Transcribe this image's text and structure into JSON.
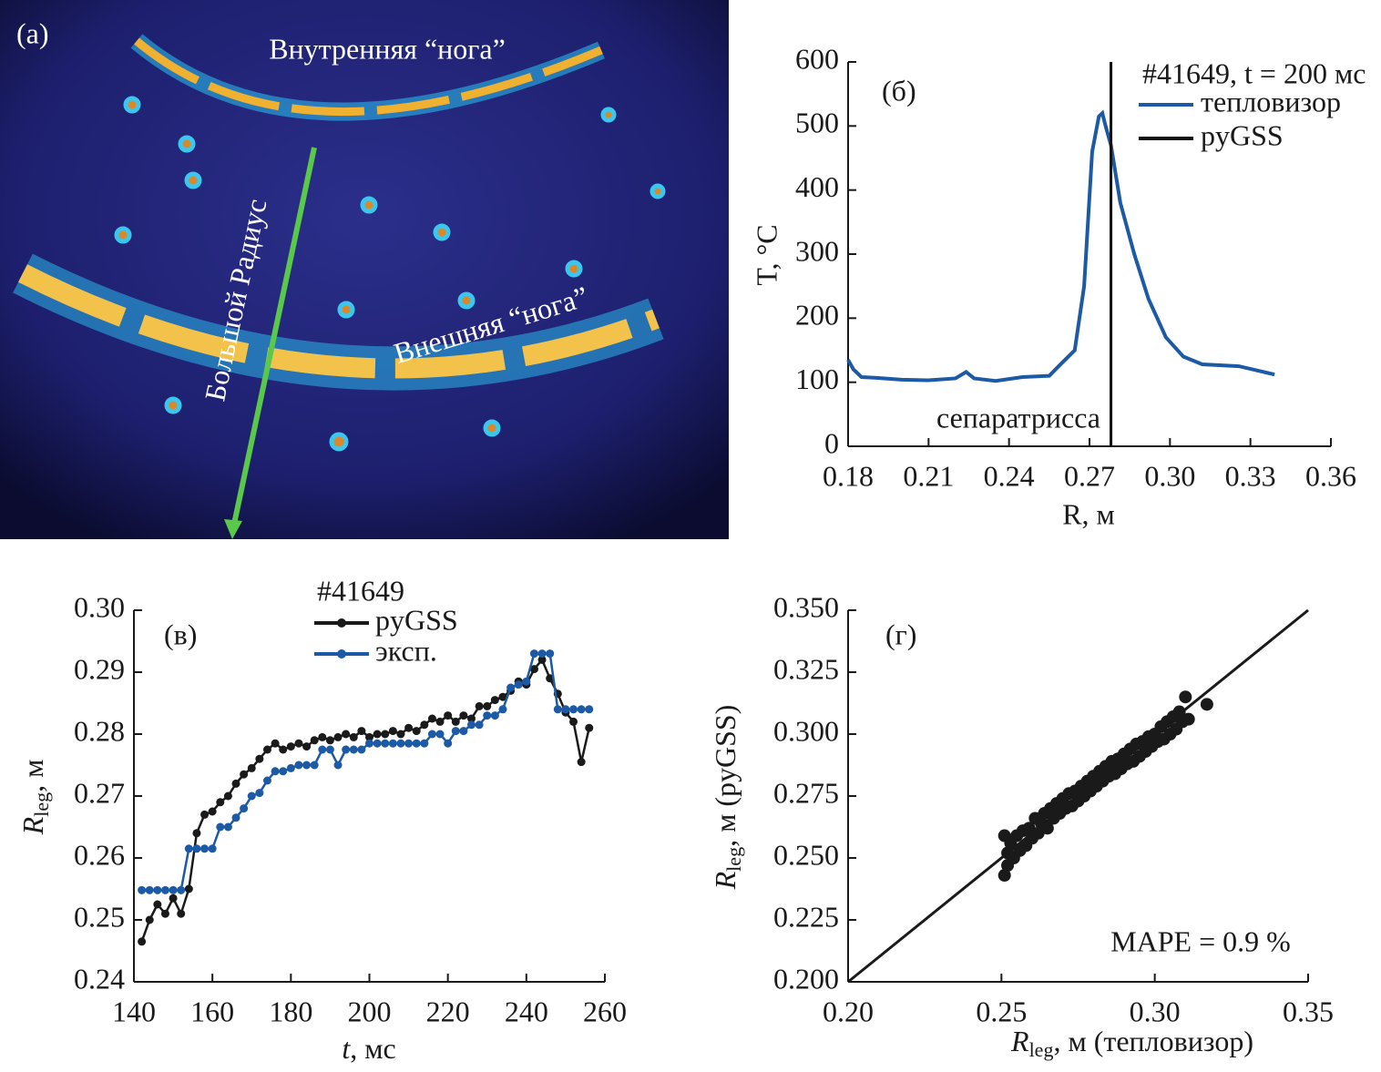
{
  "image": {
    "label": "(a)",
    "inner_leg": "Внутренняя “нога”",
    "outer_leg": "Внешняя “нога”",
    "radius": "Большой Радиус"
  },
  "chart_data": [
    {
      "type": "line",
      "label": "(б)",
      "legend_title": "#41649, t = 200 мс",
      "x_label": "R, м",
      "y_label": "T, °C",
      "annotation": "сепаратрисса",
      "xlim": [
        0.18,
        0.36
      ],
      "ylim": [
        0,
        600
      ],
      "xticks": [
        0.18,
        0.21,
        0.24,
        0.27,
        {
          "value": 0.3,
          "label": "0.30"
        },
        0.33,
        0.36
      ],
      "yticks": [
        0,
        100,
        200,
        300,
        400,
        500,
        600
      ],
      "series": [
        {
          "name": "тепловизор",
          "color": "#1d5aa6",
          "x": [
            0.18,
            0.182,
            0.185,
            0.19,
            0.2,
            0.21,
            0.22,
            0.224,
            0.227,
            0.235,
            0.245,
            0.255,
            0.2585,
            0.2645,
            0.268,
            0.271,
            0.2735,
            0.2748,
            0.276,
            0.278,
            0.2815,
            0.2867,
            0.292,
            0.2985,
            0.305,
            0.312,
            0.3257,
            0.339
          ],
          "values": [
            135,
            120,
            108,
            107,
            104,
            103,
            106,
            116,
            106,
            102,
            108,
            110,
            125,
            150,
            250,
            460,
            515,
            520,
            500,
            470,
            380,
            300,
            230,
            170,
            140,
            128,
            125,
            112
          ]
        },
        {
          "name": "pyGSS",
          "color": "#111111",
          "vline": 0.278
        }
      ]
    },
    {
      "type": "line",
      "markers": true,
      "label": "(в)",
      "legend_title": "#41649",
      "x_label": {
        "main": "t",
        "tail": ", мс"
      },
      "y_label": {
        "main": "R",
        "sub": "leg",
        "tail": ", м"
      },
      "xlim": [
        140,
        260
      ],
      "ylim": [
        0.24,
        0.3
      ],
      "xticks": [
        140,
        160,
        180,
        200,
        220,
        240,
        260
      ],
      "yticks": [
        0.24,
        0.25,
        0.26,
        0.27,
        0.28,
        0.29,
        {
          "value": 0.3,
          "label": "0.30"
        }
      ],
      "series": [
        {
          "name": "pyGSS",
          "color": "#1a1a1a",
          "x": [
            142,
            144,
            146,
            148,
            150,
            152,
            154,
            156,
            158,
            160,
            162,
            164,
            166,
            168,
            170,
            172,
            174,
            176,
            178,
            180,
            182,
            184,
            186,
            188,
            190,
            192,
            194,
            196,
            198,
            200,
            202,
            204,
            206,
            208,
            210,
            212,
            214,
            216,
            218,
            220,
            222,
            224,
            226,
            228,
            230,
            232,
            234,
            236,
            238,
            240,
            242,
            244,
            246,
            248,
            250,
            252,
            254,
            256
          ],
          "values": [
            0.2465,
            0.25,
            0.2525,
            0.251,
            0.2535,
            0.251,
            0.255,
            0.264,
            0.267,
            0.2675,
            0.269,
            0.27,
            0.272,
            0.2735,
            0.2745,
            0.276,
            0.2775,
            0.2785,
            0.2775,
            0.278,
            0.2785,
            0.278,
            0.279,
            0.2795,
            0.279,
            0.2795,
            0.28,
            0.2795,
            0.2805,
            0.2795,
            0.28,
            0.28,
            0.2805,
            0.28,
            0.281,
            0.2805,
            0.2815,
            0.2825,
            0.282,
            0.283,
            0.282,
            0.283,
            0.2825,
            0.2845,
            0.2845,
            0.2855,
            0.286,
            0.287,
            0.2885,
            0.288,
            0.2905,
            0.292,
            0.289,
            0.2865,
            0.2835,
            0.282,
            0.2755,
            0.281
          ]
        },
        {
          "name": "эксп.",
          "color": "#1d5aa6",
          "x": [
            142,
            144,
            146,
            148,
            150,
            152,
            154,
            156,
            158,
            160,
            162,
            164,
            166,
            168,
            170,
            172,
            174,
            176,
            178,
            180,
            182,
            184,
            186,
            188,
            190,
            192,
            194,
            196,
            198,
            200,
            202,
            204,
            206,
            208,
            210,
            212,
            214,
            216,
            218,
            220,
            222,
            224,
            226,
            228,
            230,
            232,
            234,
            236,
            238,
            240,
            242,
            244,
            246,
            248,
            250,
            252,
            254,
            256
          ],
          "values": [
            0.2548,
            0.2548,
            0.2548,
            0.2548,
            0.2548,
            0.2548,
            0.2615,
            0.2615,
            0.2615,
            0.2615,
            0.265,
            0.265,
            0.2665,
            0.268,
            0.27,
            0.2705,
            0.2725,
            0.274,
            0.274,
            0.2745,
            0.275,
            0.275,
            0.275,
            0.2775,
            0.2775,
            0.275,
            0.2775,
            0.2775,
            0.2775,
            0.2785,
            0.2785,
            0.2785,
            0.2785,
            0.2785,
            0.2785,
            0.2785,
            0.2785,
            0.28,
            0.28,
            0.2785,
            0.2805,
            0.2805,
            0.2815,
            0.2815,
            0.283,
            0.283,
            0.284,
            0.2875,
            0.288,
            0.2885,
            0.293,
            0.293,
            0.293,
            0.284,
            0.284,
            0.284,
            0.284,
            0.284
          ]
        }
      ]
    },
    {
      "type": "scatter",
      "label": "(г)",
      "annotation": "MAPE = 0.9 %",
      "x_label": {
        "main": "R",
        "sub": "leg",
        "tail": ", м (тепловизор)"
      },
      "y_label": {
        "main": "R",
        "sub": "leg",
        "tail": ", м (pyGSS)"
      },
      "xlim": [
        0.2,
        0.35
      ],
      "ylim": [
        0.2,
        0.35
      ],
      "xticks": [
        {
          "value": 0.2,
          "label": "0.20"
        },
        0.25,
        {
          "value": 0.3,
          "label": "0.30"
        },
        0.35
      ],
      "yticks": [
        {
          "value": 0.2,
          "label": "0.200"
        },
        {
          "value": 0.225,
          "label": "0.225"
        },
        {
          "value": 0.25,
          "label": "0.250"
        },
        {
          "value": 0.275,
          "label": "0.275"
        },
        {
          "value": 0.3,
          "label": "0.300"
        },
        {
          "value": 0.325,
          "label": "0.325"
        },
        {
          "value": 0.35,
          "label": "0.350"
        }
      ],
      "color": "#1a1a1a",
      "x": [
        0.251,
        0.251,
        0.252,
        0.252,
        0.253,
        0.254,
        0.255,
        0.256,
        0.257,
        0.258,
        0.259,
        0.26,
        0.261,
        0.262,
        0.263,
        0.264,
        0.265,
        0.266,
        0.267,
        0.268,
        0.269,
        0.27,
        0.271,
        0.272,
        0.273,
        0.274,
        0.275,
        0.276,
        0.277,
        0.278,
        0.279,
        0.28,
        0.281,
        0.282,
        0.283,
        0.284,
        0.285,
        0.286,
        0.287,
        0.288,
        0.289,
        0.29,
        0.291,
        0.292,
        0.293,
        0.294,
        0.295,
        0.296,
        0.297,
        0.298,
        0.299,
        0.3,
        0.301,
        0.302,
        0.303,
        0.304,
        0.305,
        0.306,
        0.307,
        0.308,
        0.309,
        0.31,
        0.311,
        0.317
      ],
      "values": [
        0.243,
        0.259,
        0.252,
        0.247,
        0.256,
        0.25,
        0.259,
        0.253,
        0.261,
        0.255,
        0.262,
        0.258,
        0.266,
        0.26,
        0.264,
        0.268,
        0.262,
        0.27,
        0.266,
        0.272,
        0.268,
        0.274,
        0.27,
        0.276,
        0.271,
        0.277,
        0.273,
        0.279,
        0.275,
        0.281,
        0.277,
        0.283,
        0.279,
        0.285,
        0.281,
        0.287,
        0.283,
        0.289,
        0.284,
        0.29,
        0.286,
        0.292,
        0.288,
        0.294,
        0.289,
        0.296,
        0.291,
        0.297,
        0.293,
        0.299,
        0.295,
        0.3,
        0.297,
        0.303,
        0.298,
        0.305,
        0.3,
        0.307,
        0.302,
        0.309,
        0.305,
        0.315,
        0.306,
        0.312
      ]
    }
  ]
}
